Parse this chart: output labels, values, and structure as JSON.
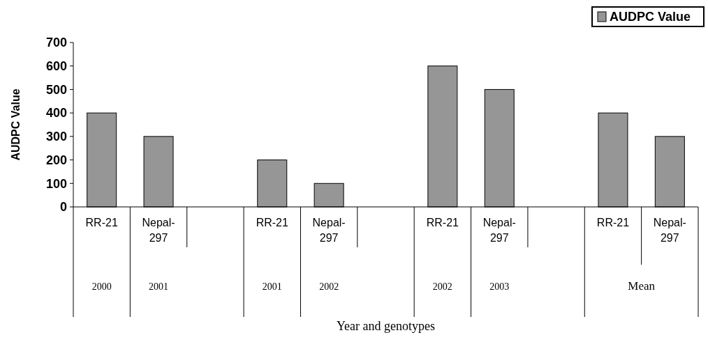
{
  "chart_data": {
    "type": "bar",
    "ylabel": "AUDPC Value",
    "categories": [
      "RR-21",
      "Nepal-297",
      null,
      "RR-21",
      "Nepal-297",
      null,
      "RR-21",
      "Nepal-297",
      null,
      "RR-21",
      "Nepal-297"
    ],
    "series": [
      {
        "name": "AUDPC Value",
        "color": "#969696",
        "values": [
          400,
          300,
          null,
          200,
          100,
          null,
          600,
          500,
          null,
          400,
          300
        ]
      }
    ],
    "ylim": [
      0,
      700
    ],
    "yticks": [
      0,
      100,
      200,
      300,
      400,
      500,
      600,
      700
    ],
    "grid": false,
    "legend": "top right",
    "annotations": [
      "2000",
      "2001",
      "2001",
      "2002",
      "2002",
      "2003",
      "Mean",
      "Year and genotypes"
    ]
  }
}
